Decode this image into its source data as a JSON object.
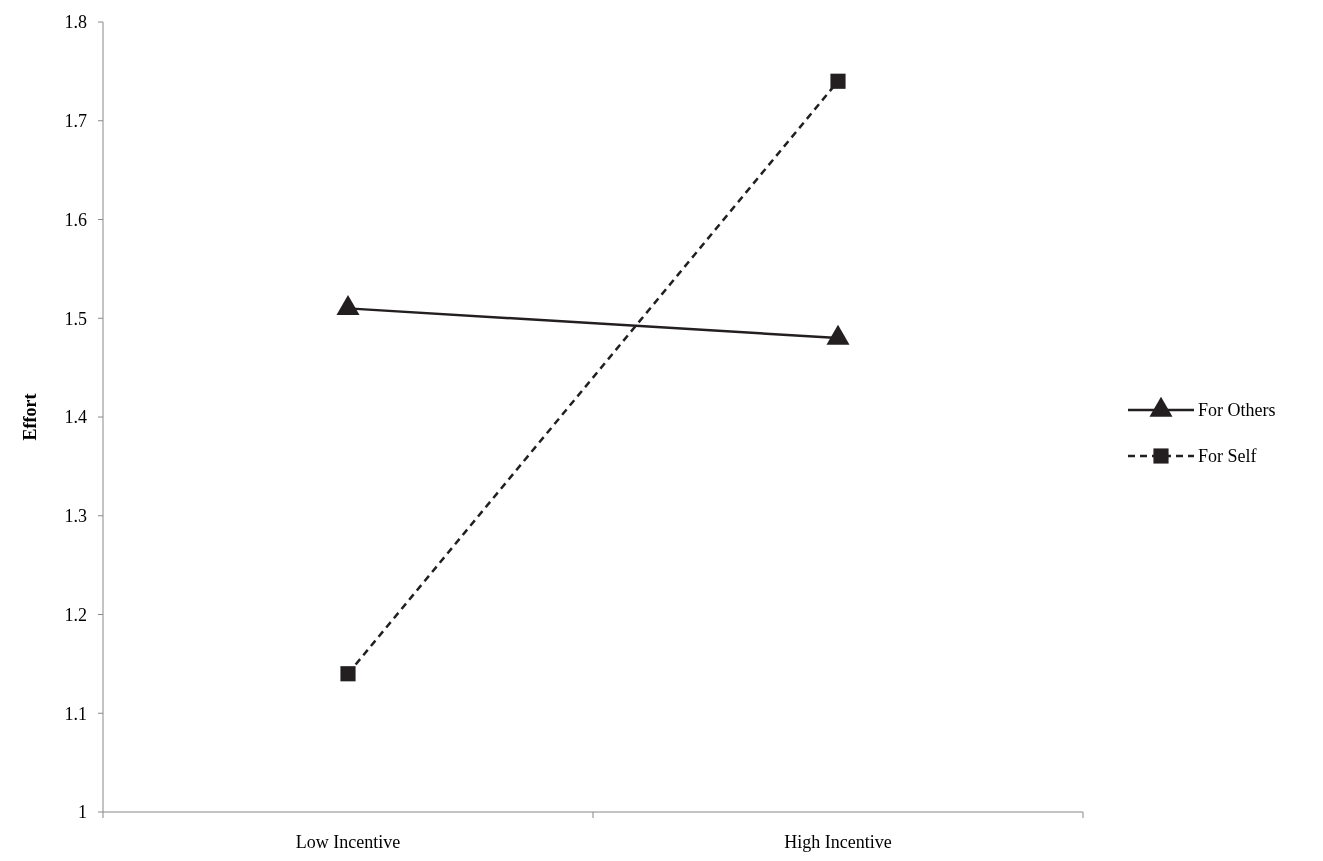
{
  "chart_data": {
    "type": "line",
    "ylabel": "Effort",
    "categories": [
      "Low Incentive",
      "High Incentive"
    ],
    "series": [
      {
        "name": "For Others",
        "color": "#231f20",
        "values": [
          1.51,
          1.48
        ],
        "marker": "triangle",
        "line_style": "solid"
      },
      {
        "name": "For Self",
        "color": "#231f20",
        "values": [
          1.14,
          1.74
        ],
        "marker": "square",
        "line_style": "dashed"
      }
    ],
    "ylim": [
      1,
      1.8
    ],
    "yticks": [
      1,
      1.1,
      1.2,
      1.3,
      1.4,
      1.5,
      1.6,
      1.7,
      1.8
    ],
    "grid": false,
    "legend": "right"
  }
}
